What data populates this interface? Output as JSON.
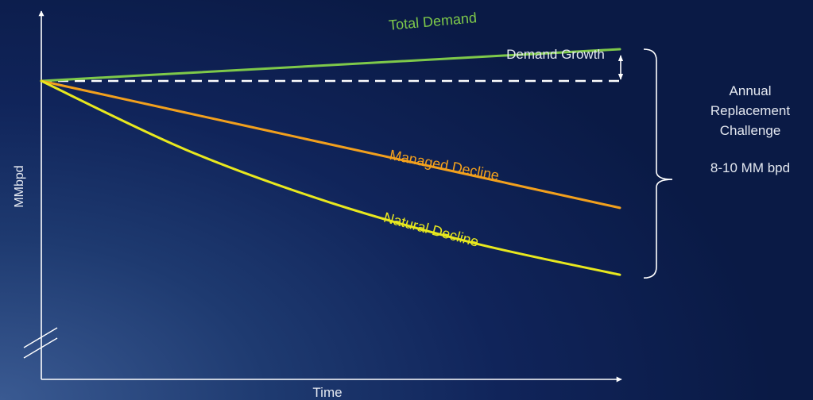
{
  "chart_data": {
    "type": "line",
    "title": "",
    "xlabel": "Time",
    "ylabel": "MMbpd",
    "x": [
      0,
      0.25,
      0.5,
      0.75,
      1
    ],
    "series": [
      {
        "name": "Total Demand",
        "color": "#7ec94a",
        "values": [
          1.0,
          1.0266,
          1.0532,
          1.0798,
          1.1064
        ]
      },
      {
        "name": "Managed Decline",
        "color": "#f2a01d",
        "values": [
          1.0,
          0.8937,
          0.7873,
          0.681,
          0.5747
        ]
      },
      {
        "name": "Natural Decline",
        "color": "#e8e81e",
        "values": [
          1.0,
          0.7695,
          0.5921,
          0.4556,
          0.3505
        ]
      }
    ],
    "baseline": {
      "value": 1.0,
      "style": "dashed",
      "color": "#ffffff"
    },
    "annotations": {
      "demand_growth": "Demand Growth",
      "bracket_heading": [
        "Annual",
        "Replacement",
        "Challenge"
      ],
      "bracket_value": "8-10 MM bpd"
    },
    "axis_break": true,
    "grid": false,
    "legend": "none"
  }
}
